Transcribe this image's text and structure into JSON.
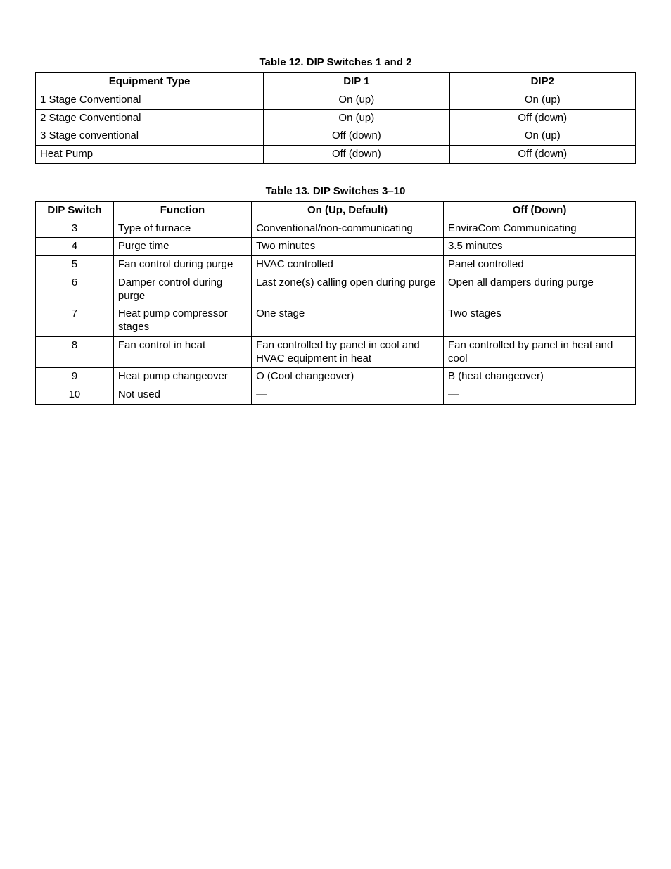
{
  "table12": {
    "caption": "Table 12. DIP Switches 1 and 2",
    "columns": [
      "Equipment Type",
      "DIP 1",
      "DIP2"
    ],
    "rows": [
      [
        "1 Stage Conventional",
        "On (up)",
        "On (up)"
      ],
      [
        "2 Stage Conventional",
        "On (up)",
        "Off (down)"
      ],
      [
        "3 Stage conventional",
        "Off (down)",
        "On (up)"
      ],
      [
        "Heat Pump",
        "Off (down)",
        "Off (down)"
      ]
    ]
  },
  "table13": {
    "caption": "Table 13. DIP Switches 3–10",
    "columns": [
      "DIP Switch",
      "Function",
      "On (Up, Default)",
      "Off (Down)"
    ],
    "rows": [
      [
        "3",
        "Type of furnace",
        "Conventional/non-communicating",
        "EnviraCom Communicating"
      ],
      [
        "4",
        "Purge time",
        "Two minutes",
        "3.5 minutes"
      ],
      [
        "5",
        "Fan control during purge",
        "HVAC controlled",
        "Panel controlled"
      ],
      [
        "6",
        "Damper control during purge",
        "Last zone(s) calling open during purge",
        "Open all dampers during purge"
      ],
      [
        "7",
        "Heat pump compressor stages",
        "One stage",
        "Two stages"
      ],
      [
        "8",
        "Fan control in heat",
        "Fan controlled by panel in cool and HVAC equipment in heat",
        "Fan controlled by panel in heat and cool"
      ],
      [
        "9",
        "Heat pump changeover",
        "O (Cool changeover)",
        "B (heat changeover)"
      ],
      [
        "10",
        "Not used",
        "—",
        "—"
      ]
    ]
  }
}
